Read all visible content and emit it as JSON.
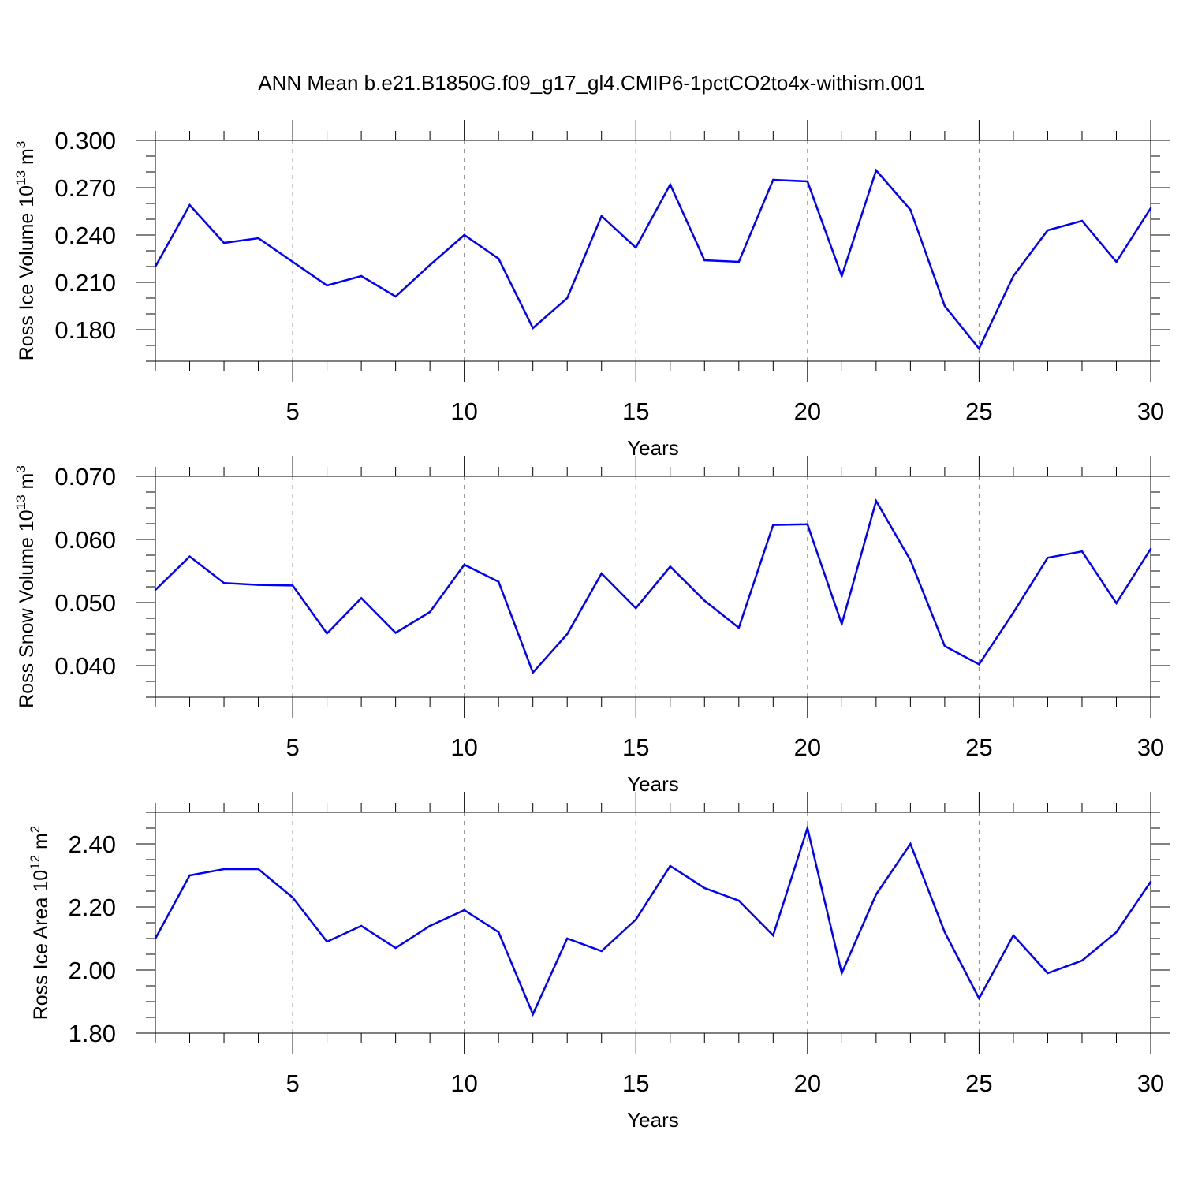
{
  "title": "ANN Mean b.e21.B1850G.f09_g17_gl4.CMIP6-1pctCO2to4x-withism.001",
  "colors": {
    "line": "#0000ff",
    "axis": "#000000",
    "grid": "#888888",
    "background": "#ffffff"
  },
  "chart_data": [
    {
      "type": "line",
      "ylabel_text": "Ross Ice Volume 10",
      "ylabel_exp": "13",
      "ylabel_unit": " m",
      "ylabel_unit_exp": "3",
      "xlabel": "Years",
      "xlim": [
        1,
        30
      ],
      "ylim": [
        0.16,
        0.3
      ],
      "xticks": [
        5,
        10,
        15,
        20,
        25,
        30
      ],
      "yticks": [
        0.18,
        0.21,
        0.24,
        0.27,
        0.3
      ],
      "ytick_labels": [
        "0.180",
        "0.210",
        "0.240",
        "0.270",
        "0.300"
      ],
      "yminor_step": 0.01,
      "grid": "vertical dashed at major x ticks",
      "x": [
        1,
        2,
        3,
        4,
        5,
        6,
        7,
        8,
        9,
        10,
        11,
        12,
        13,
        14,
        15,
        16,
        17,
        18,
        19,
        20,
        21,
        22,
        23,
        24,
        25,
        26,
        27,
        28,
        29,
        30
      ],
      "values": [
        0.22,
        0.259,
        0.235,
        0.238,
        0.223,
        0.208,
        0.214,
        0.201,
        0.221,
        0.24,
        0.225,
        0.181,
        0.2,
        0.252,
        0.232,
        0.272,
        0.224,
        0.223,
        0.275,
        0.274,
        0.214,
        0.281,
        0.256,
        0.195,
        0.168,
        0.214,
        0.243,
        0.249,
        0.223,
        0.257
      ]
    },
    {
      "type": "line",
      "ylabel_text": "Ross Snow Volume 10",
      "ylabel_exp": "13",
      "ylabel_unit": " m",
      "ylabel_unit_exp": "3",
      "xlabel": "Years",
      "xlim": [
        1,
        30
      ],
      "ylim": [
        0.035,
        0.07
      ],
      "xticks": [
        5,
        10,
        15,
        20,
        25,
        30
      ],
      "yticks": [
        0.04,
        0.05,
        0.06,
        0.07
      ],
      "ytick_labels": [
        "0.040",
        "0.050",
        "0.060",
        "0.070"
      ],
      "yminor_step": 0.0025,
      "grid": "vertical dashed at major x ticks",
      "x": [
        1,
        2,
        3,
        4,
        5,
        6,
        7,
        8,
        9,
        10,
        11,
        12,
        13,
        14,
        15,
        16,
        17,
        18,
        19,
        20,
        21,
        22,
        23,
        24,
        25,
        26,
        27,
        28,
        29,
        30
      ],
      "values": [
        0.052,
        0.0573,
        0.0531,
        0.0528,
        0.0527,
        0.0451,
        0.0507,
        0.0452,
        0.0485,
        0.056,
        0.0533,
        0.0389,
        0.045,
        0.0546,
        0.0491,
        0.0557,
        0.0503,
        0.046,
        0.0623,
        0.0624,
        0.0466,
        0.0661,
        0.0567,
        0.0431,
        0.0402,
        0.0484,
        0.0571,
        0.0581,
        0.0499,
        0.0585
      ]
    },
    {
      "type": "line",
      "ylabel_text": "Ross Ice Area 10",
      "ylabel_exp": "12",
      "ylabel_unit": " m",
      "ylabel_unit_exp": "2",
      "xlabel": "Years",
      "xlim": [
        1,
        30
      ],
      "ylim": [
        1.8,
        2.5
      ],
      "xticks": [
        5,
        10,
        15,
        20,
        25,
        30
      ],
      "yticks": [
        1.8,
        2.0,
        2.2,
        2.4
      ],
      "ytick_labels": [
        "1.80",
        "2.00",
        "2.20",
        "2.40"
      ],
      "yminor_step": 0.05,
      "grid": "vertical dashed at major x ticks",
      "x": [
        1,
        2,
        3,
        4,
        5,
        6,
        7,
        8,
        9,
        10,
        11,
        12,
        13,
        14,
        15,
        16,
        17,
        18,
        19,
        20,
        21,
        22,
        23,
        24,
        25,
        26,
        27,
        28,
        29,
        30
      ],
      "values": [
        2.1,
        2.3,
        2.32,
        2.32,
        2.23,
        2.09,
        2.14,
        2.07,
        2.14,
        2.19,
        2.12,
        1.86,
        2.1,
        2.06,
        2.16,
        2.33,
        2.26,
        2.22,
        2.11,
        2.45,
        1.99,
        2.24,
        2.4,
        2.12,
        1.91,
        2.11,
        1.99,
        2.03,
        2.12,
        2.28
      ]
    }
  ]
}
